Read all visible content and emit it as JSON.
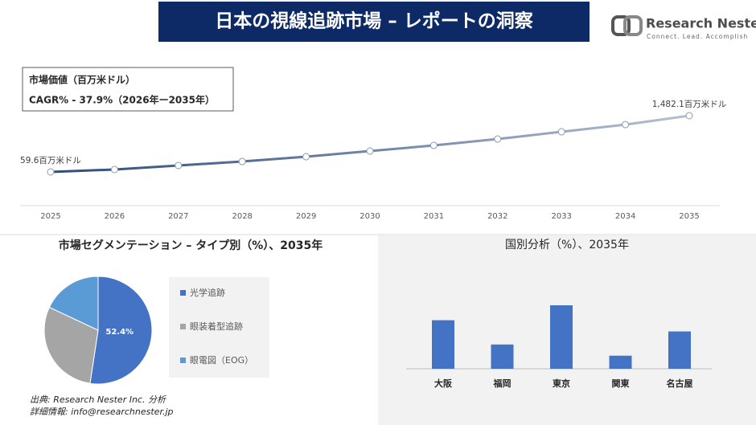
{
  "header": {
    "title": "日本の視線追跡市場 – レポートの洞察",
    "logo_name": "Research Nester",
    "logo_tagline": "Connect. Lead. Accomplish"
  },
  "chart_data": [
    {
      "type": "line",
      "annotations": [
        "市場価値（百万米ドル）",
        "CAGR% - 37.9%（2026年ー2035年）"
      ],
      "categories": [
        "2025",
        "2026",
        "2027",
        "2028",
        "2029",
        "2030",
        "2031",
        "2032",
        "2033",
        "2034",
        "2035"
      ],
      "values": [
        59.6,
        120.6,
        222,
        323,
        445,
        587,
        730,
        892,
        1075,
        1257,
        1482.1
      ],
      "value_labels": [
        "59.6百万米ドル",
        null,
        null,
        null,
        null,
        null,
        null,
        null,
        null,
        null,
        "1,482.1百万米ドル"
      ],
      "color": "#2e4a7c"
    },
    {
      "type": "pie",
      "title": "市場セグメンテーション – タイプ別（%）、2035年",
      "categories": [
        "光学追跡",
        "眼装着型追跡",
        "眼電図（EOG）"
      ],
      "values": [
        52.4,
        29.6,
        18
      ],
      "value_labels": [
        "52.4%",
        null,
        null
      ],
      "colors": [
        "#4472c4",
        "#a5a5a5",
        "#5b9bd5"
      ]
    },
    {
      "type": "bar",
      "title": "国別分析（%）、2035年",
      "categories": [
        "大阪",
        "福岡",
        "東京",
        "関東",
        "名古屋"
      ],
      "values": [
        26,
        13,
        34,
        7,
        20
      ],
      "color": "#4472c4"
    }
  ],
  "footer": {
    "source": "出典: Research Nester Inc. 分析",
    "contact": "詳細情報: info@researchnester.jp"
  }
}
